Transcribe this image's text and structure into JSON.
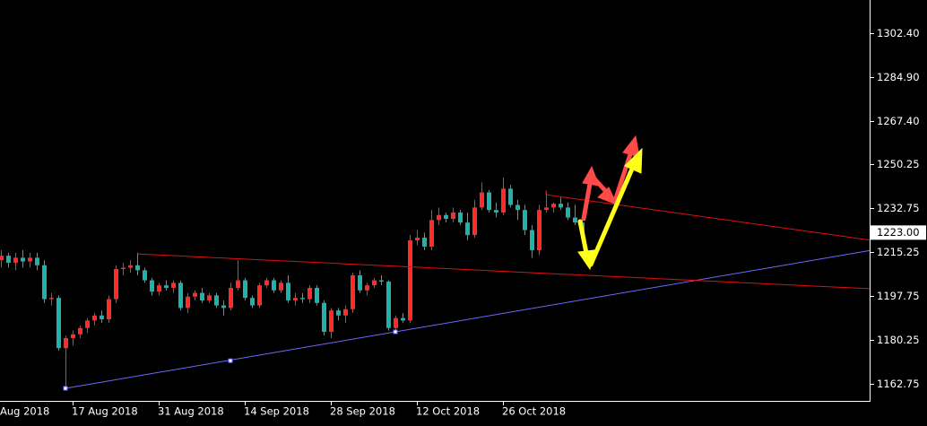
{
  "chart_data": {
    "type": "candlestick",
    "categories": [
      "Aug 2018",
      null,
      null,
      null,
      null,
      null,
      null,
      null,
      null,
      null,
      null,
      null,
      "17 Aug 2018",
      null,
      null,
      null,
      null,
      null,
      null,
      null,
      null,
      null,
      null,
      null,
      "31 Aug 2018",
      null,
      null,
      null,
      null,
      null,
      null,
      null,
      null,
      null,
      null,
      null,
      "14 Sep 2018",
      null,
      null,
      null,
      null,
      null,
      null,
      null,
      null,
      null,
      null,
      null,
      "28 Sep 2018",
      null,
      null,
      null,
      null,
      null,
      null,
      null,
      null,
      null,
      null,
      null,
      "12 Oct 2018",
      null,
      null,
      null,
      null,
      null,
      null,
      null,
      null,
      null,
      null,
      null,
      "26 Oct 2018",
      null,
      null,
      null,
      null,
      null,
      null,
      null,
      null,
      null,
      null,
      null
    ],
    "open": [
      null,
      null,
      1212,
      1213.8,
      1211,
      1213,
      1211.5,
      1213,
      1210,
      1196.5,
      1197,
      1177,
      1181,
      1182.5,
      1185,
      1188,
      1190,
      1188.5,
      1196.5,
      1208.5,
      1209,
      1210,
      1208,
      1204,
      1199.5,
      1202,
      1201,
      1203,
      1193,
      1197.5,
      1199,
      1196,
      1198,
      1194,
      1193,
      1201,
      1204,
      1197,
      1194,
      1202,
      1204,
      1200,
      1203,
      1196,
      1197,
      1196.5,
      1201,
      1195,
      1183.5,
      1192,
      1190,
      1192.5,
      1206,
      1200,
      1202,
      1204,
      1203.5,
      1185,
      1189,
      1188,
      1219.9,
      1221,
      1217.4,
      1228,
      1230,
      1228.5,
      1231,
      1227,
      1222,
      1233,
      1239,
      1232,
      1231,
      1240.5,
      1234,
      1232,
      1224,
      1216,
      1232,
      1233,
      1234.5,
      1233,
      1229,
      1227
    ],
    "high": [
      null,
      null,
      1216,
      1215,
      1215,
      1216,
      1215,
      1215,
      1212,
      1199,
      1198,
      1182,
      1184,
      1186,
      1189,
      1191,
      1192,
      1198,
      1210,
      1211,
      1212,
      1215,
      1209,
      1205,
      1203,
      1204,
      1204,
      1204,
      1199,
      1200,
      1201,
      1199,
      1199,
      1196,
      1203,
      1212,
      1205,
      1198,
      1203,
      1205,
      1205,
      1204,
      1206,
      1199,
      1199,
      1202,
      1202,
      1196,
      1193,
      1193,
      1194,
      1207,
      1208,
      1203,
      1205,
      1206,
      1204,
      1190,
      1191,
      1222,
      1224,
      1223,
      1232,
      1233,
      1231,
      1233,
      1232,
      1231,
      1236,
      1243,
      1240,
      1235,
      1245,
      1242,
      1236,
      1234,
      1226,
      1234,
      1239,
      1235,
      1237,
      1235,
      1234,
      1229
    ],
    "low": [
      null,
      null,
      1209,
      1209,
      1208,
      1209,
      1209,
      1208,
      1195,
      1194,
      1176,
      1161,
      1178,
      1181,
      1183,
      1186,
      1187,
      1187,
      1195,
      1206,
      1207,
      1206,
      1203,
      1198,
      1198,
      1200,
      1199,
      1192,
      1191,
      1196,
      1195,
      1195,
      1193,
      1190,
      1192,
      1200,
      1196,
      1193,
      1193,
      1201,
      1199,
      1199,
      1195,
      1194,
      1195,
      1195,
      1194,
      1182,
      1181,
      1188,
      1187,
      1191,
      1199,
      1198,
      1201,
      1202,
      1184,
      1183,
      1187,
      1187,
      1218,
      1216,
      1216,
      1226,
      1227,
      1227,
      1226,
      1220,
      1221,
      1232,
      1231,
      1229,
      1230,
      1233,
      1228,
      1222,
      1213,
      1214,
      1231,
      1231,
      1232,
      1228,
      1226,
      1223
    ],
    "close": [
      null,
      null,
      1213.8,
      1211,
      1213,
      1211.5,
      1213,
      1210,
      1196.5,
      1197,
      1177,
      1181,
      1182.5,
      1185,
      1188,
      1190,
      1188.5,
      1196.5,
      1208.5,
      1209,
      1210,
      1208,
      1204,
      1199.5,
      1202,
      1201,
      1203,
      1193,
      1197.5,
      1199,
      1196,
      1198,
      1194,
      1193,
      1201,
      1204,
      1197,
      1194,
      1202,
      1204,
      1200,
      1203,
      1196,
      1197,
      1196.5,
      1201,
      1195,
      1183.5,
      1192,
      1190,
      1192.5,
      1206,
      1200,
      1202,
      1204,
      1203.5,
      1185,
      1189,
      1188,
      1219.9,
      1221,
      1217.4,
      1228,
      1230,
      1228.5,
      1231,
      1227,
      1222,
      1233,
      1239,
      1232,
      1231,
      1240.5,
      1234,
      1232,
      1224,
      1216,
      1232,
      1233,
      1234.5,
      1233,
      1229,
      1227,
      1223
    ],
    "up_color": "#ff2a2a",
    "down_color": "#20b2aa",
    "ylim": [
      1156.0,
      1315.6
    ],
    "yticks": [
      {
        "value": 1162.75,
        "label": "1162.75"
      },
      {
        "value": 1180.25,
        "label": "1180.25"
      },
      {
        "value": 1197.75,
        "label": "1197.75"
      },
      {
        "value": 1215.25,
        "label": "1215.25"
      },
      {
        "value": 1232.75,
        "label": "1232.75"
      },
      {
        "value": 1250.25,
        "label": "1250.25"
      },
      {
        "value": 1267.4,
        "label": "1267.40"
      },
      {
        "value": 1284.9,
        "label": "1284.90"
      },
      {
        "value": 1302.4,
        "label": "1302.40"
      }
    ],
    "current_price": {
      "value": 1223,
      "label": "1223.00"
    },
    "trendlines": [
      {
        "color": "#6a6aff",
        "points": [
          [
            11,
            1161
          ],
          [
            34,
            1172
          ],
          [
            57,
            1183.5
          ]
        ],
        "ray": true
      },
      {
        "color": "#e01010",
        "points": [
          [
            21,
            1214.5
          ],
          [
            83,
            1206.1
          ]
        ],
        "ray": true
      },
      {
        "color": "#e01010",
        "points": [
          [
            78,
            1238.1
          ],
          [
            83,
            1236.1
          ]
        ],
        "ray": true
      }
    ]
  }
}
